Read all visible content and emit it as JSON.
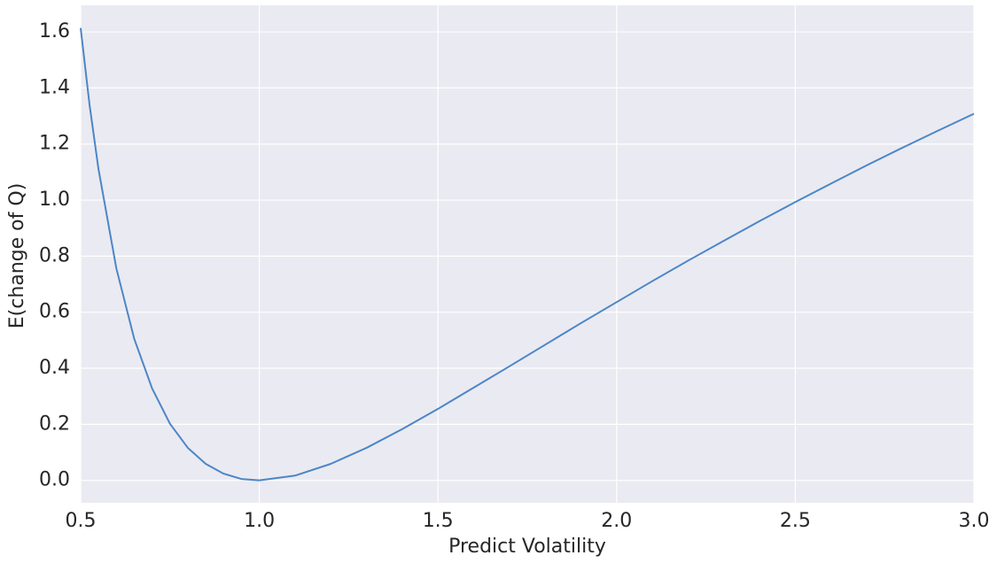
{
  "chart_data": {
    "type": "line",
    "xlabel": "Predict Volatility",
    "ylabel": "E(change of Q)",
    "x": [
      0.5,
      0.525,
      0.55,
      0.6,
      0.65,
      0.7,
      0.75,
      0.8,
      0.85,
      0.9,
      0.95,
      1.0,
      1.1,
      1.2,
      1.3,
      1.4,
      1.5,
      1.6,
      1.7,
      1.8,
      1.9,
      2.0,
      2.1,
      2.2,
      2.3,
      2.4,
      2.5,
      2.6,
      2.7,
      2.8,
      2.9,
      3.0
    ],
    "series": [
      {
        "color": "#4c86c6",
        "values": [
          1.614,
          1.339,
          1.11,
          0.756,
          0.505,
          0.328,
          0.202,
          0.116,
          0.059,
          0.024,
          0.005,
          0.0,
          0.017,
          0.059,
          0.116,
          0.183,
          0.255,
          0.331,
          0.407,
          0.484,
          0.561,
          0.636,
          0.711,
          0.784,
          0.855,
          0.925,
          0.993,
          1.059,
          1.124,
          1.187,
          1.248,
          1.308
        ]
      }
    ],
    "xlim": [
      0.5,
      3.0
    ],
    "ylim": [
      -0.08,
      1.695
    ],
    "xticks": [
      0.5,
      {
        "value": 1.0,
        "label": "1.0"
      },
      1.5,
      {
        "value": 2.0,
        "label": "2.0"
      },
      2.5,
      {
        "value": 3.0,
        "label": "3.0"
      }
    ],
    "yticks": [
      {
        "value": 0.0,
        "label": "0.0"
      },
      0.2,
      0.4,
      0.6,
      0.8,
      {
        "value": 1.0,
        "label": "1.0"
      },
      1.2,
      1.4,
      1.6
    ],
    "grid": true,
    "background": "#eaeaf2"
  }
}
